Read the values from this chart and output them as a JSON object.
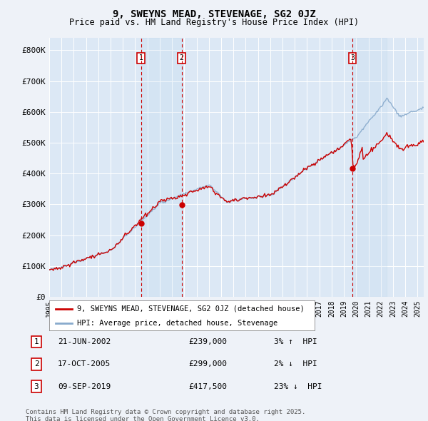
{
  "title": "9, SWEYNS MEAD, STEVENAGE, SG2 0JZ",
  "subtitle": "Price paid vs. HM Land Registry's House Price Index (HPI)",
  "ylabel_ticks": [
    "£0",
    "£100K",
    "£200K",
    "£300K",
    "£400K",
    "£500K",
    "£600K",
    "£700K",
    "£800K"
  ],
  "ytick_values": [
    0,
    100000,
    200000,
    300000,
    400000,
    500000,
    600000,
    700000,
    800000
  ],
  "ylim": [
    0,
    840000
  ],
  "xlim_start": 1995.0,
  "xlim_end": 2025.5,
  "background_color": "#eef2f8",
  "plot_bg_color": "#dce8f5",
  "grid_color": "#ffffff",
  "sale_color": "#cc0000",
  "hpi_color": "#88aacc",
  "transaction1": {
    "label": "1",
    "date": "21-JUN-2002",
    "price": 239000,
    "pct": "3%",
    "dir": "↑",
    "x": 2002.47
  },
  "transaction2": {
    "label": "2",
    "date": "17-OCT-2005",
    "price": 299000,
    "pct": "2%",
    "dir": "↓",
    "x": 2005.79
  },
  "transaction3": {
    "label": "3",
    "date": "09-SEP-2019",
    "price": 417500,
    "pct": "23%",
    "dir": "↓",
    "x": 2019.69
  },
  "legend_label1": "9, SWEYNS MEAD, STEVENAGE, SG2 0JZ (detached house)",
  "legend_label2": "HPI: Average price, detached house, Stevenage",
  "footer1": "Contains HM Land Registry data © Crown copyright and database right 2025.",
  "footer2": "This data is licensed under the Open Government Licence v3.0.",
  "xtick_years": [
    1995,
    1996,
    1997,
    1998,
    1999,
    2000,
    2001,
    2002,
    2003,
    2004,
    2005,
    2006,
    2007,
    2008,
    2009,
    2010,
    2011,
    2012,
    2013,
    2014,
    2015,
    2016,
    2017,
    2018,
    2019,
    2020,
    2021,
    2022,
    2023,
    2024,
    2025
  ]
}
